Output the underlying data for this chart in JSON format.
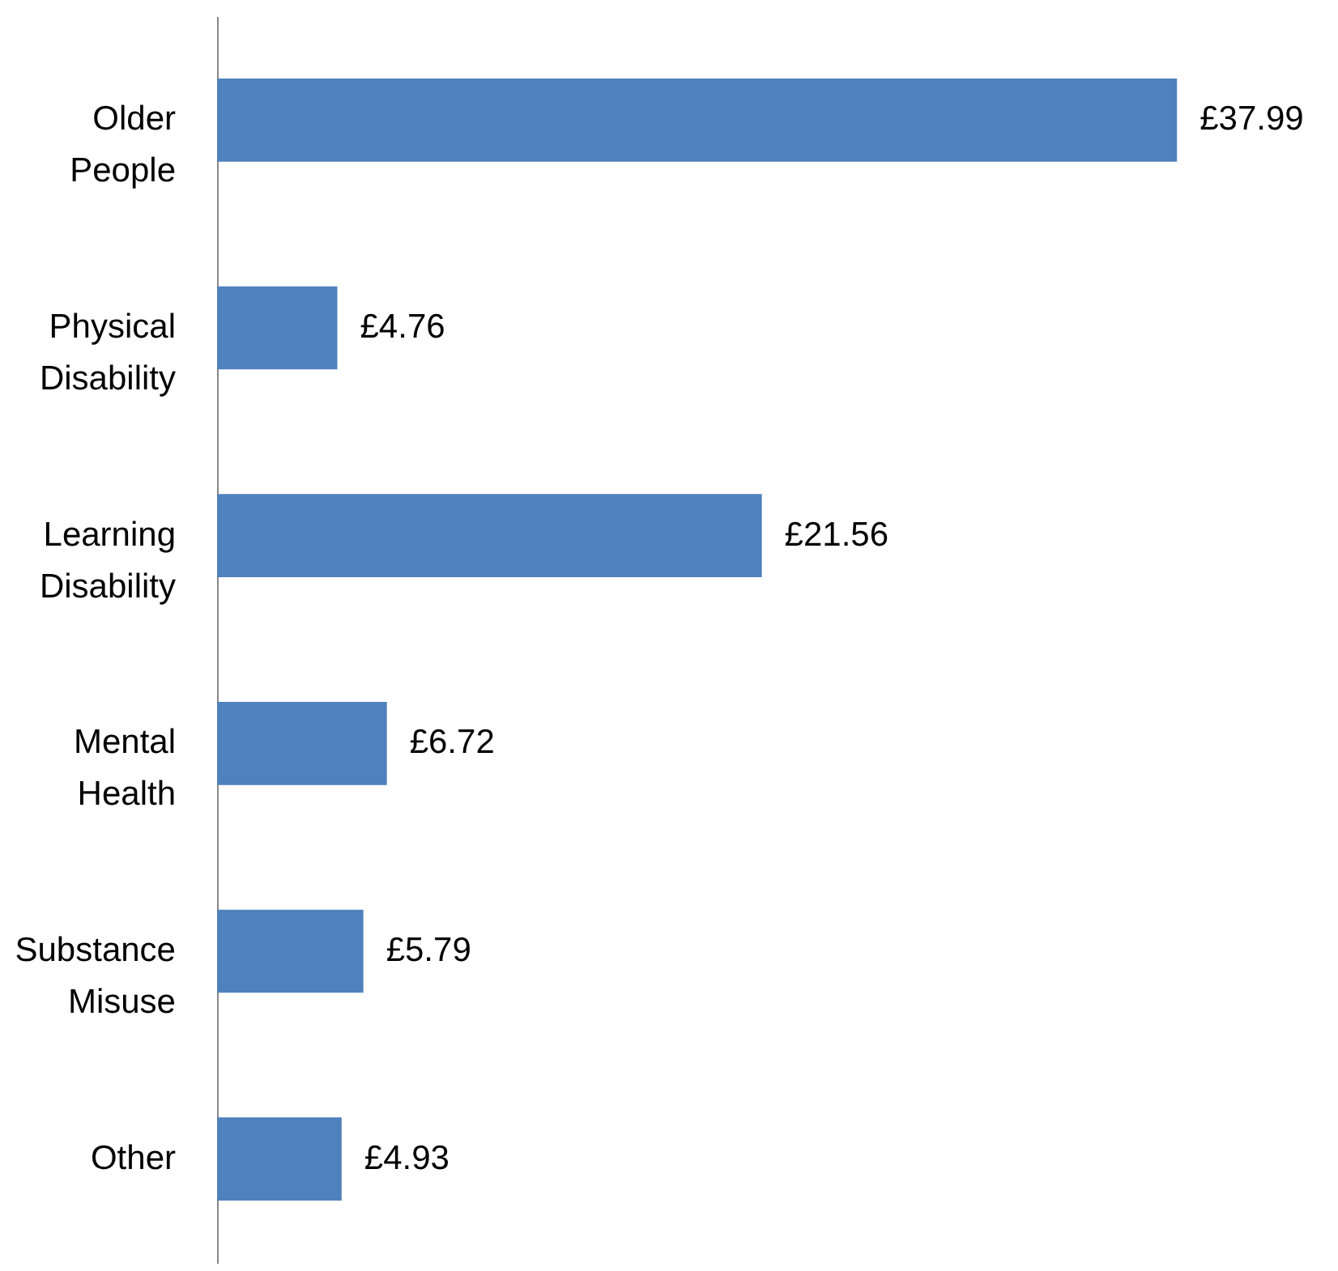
{
  "chart_data": {
    "type": "bar",
    "orientation": "horizontal",
    "categories": [
      "Older People",
      "Physical Disability",
      "Learning Disability",
      "Mental Health",
      "Substance Misuse",
      "Other"
    ],
    "values": [
      37.99,
      4.76,
      21.56,
      6.72,
      5.79,
      4.93
    ],
    "value_labels": [
      "£37.99",
      "£4.76",
      "£21.56",
      "£6.72",
      "£5.79",
      "£4.93"
    ],
    "color": "#4f81bd"
  }
}
